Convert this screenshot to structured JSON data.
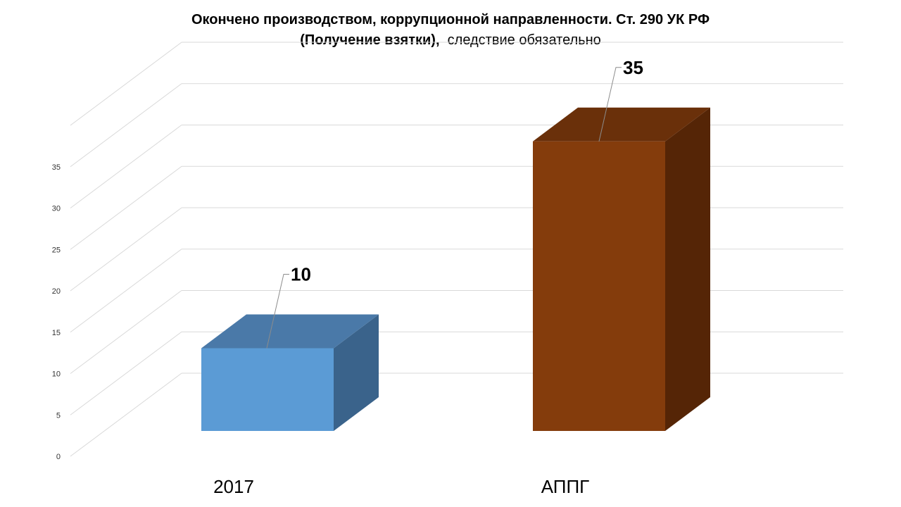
{
  "chart_data": {
    "type": "bar",
    "title_line1": "Окончено производством, коррупционной направленности. Ст. 290 УК РФ",
    "title_line2_bold": "(Получение взятки),",
    "title_line2_normal": "следствие обязательно",
    "categories": [
      "2017",
      "АППГ"
    ],
    "values": [
      10,
      35
    ],
    "data_labels": [
      "10",
      "35"
    ],
    "ylim": [
      0,
      40
    ],
    "ytick_values": [
      0,
      5,
      10,
      15,
      20,
      25,
      30,
      35
    ],
    "ytick_labels": [
      "0",
      "5",
      "10",
      "15",
      "20",
      "25",
      "30",
      "35"
    ],
    "xlabel": "",
    "ylabel": "",
    "three_d": true,
    "grid": true,
    "legend": "none",
    "colors": {
      "bar_2017_front": "#5B9BD5",
      "bar_2017_top": "#4A79A8",
      "bar_2017_side": "#3A638B",
      "bar_appg_front": "#843C0C",
      "bar_appg_top": "#6A300A",
      "bar_appg_side": "#552506",
      "grid": "#D9D9D9"
    }
  }
}
